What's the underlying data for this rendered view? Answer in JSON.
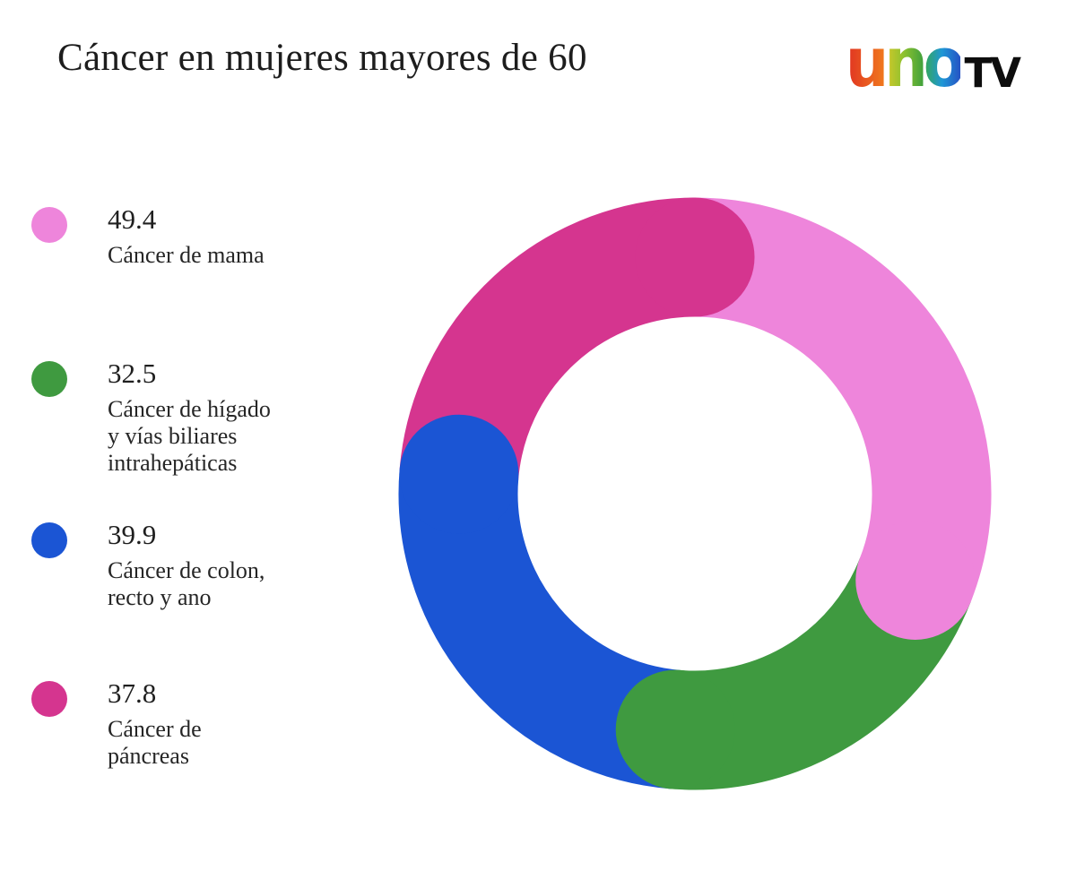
{
  "header": {
    "title": "Cáncer en mujeres mayores de 60",
    "logo": {
      "tv": "TV",
      "letters": [
        {
          "char": "u",
          "dir": "90deg",
          "stops": [
            "#E03122",
            "#F0791E"
          ]
        },
        {
          "char": "n",
          "dir": "90deg",
          "stops": [
            "#D8C929",
            "#8DC12F",
            "#3FA03C"
          ]
        },
        {
          "char": "o",
          "dir": "90deg",
          "stops": [
            "#36A851",
            "#1F97D6",
            "#2653C4"
          ]
        }
      ]
    }
  },
  "chart_data": {
    "type": "pie",
    "subtype": "donut",
    "title": "Cáncer en mujeres mayores de 60",
    "start_angle_deg": -90,
    "direction": "clockwise",
    "rounded_caps": true,
    "legend_position": "left",
    "series": [
      {
        "name": "Cáncer de mama",
        "value": 49.4,
        "color": "#EE85DB"
      },
      {
        "name": "Cáncer de hígado y vías biliares intrahepáticas",
        "value": 32.5,
        "color": "#3F9A40"
      },
      {
        "name": "Cáncer de colon, recto y ano",
        "value": 39.9,
        "color": "#1B55D4"
      },
      {
        "name": "Cáncer de páncreas",
        "value": 37.8,
        "color": "#D5358F"
      }
    ]
  },
  "legend": {
    "items": [
      {
        "value": "49.4",
        "color": "#EE85DB",
        "label_lines": [
          "Cáncer de mama"
        ]
      },
      {
        "value": "32.5",
        "color": "#3F9A40",
        "label_lines": [
          "Cáncer de hígado",
          "y vías biliares",
          "intrahepáticas"
        ]
      },
      {
        "value": "39.9",
        "color": "#1B55D4",
        "label_lines": [
          "Cáncer de colon,",
          "recto y ano"
        ]
      },
      {
        "value": "37.8",
        "color": "#D5358F",
        "label_lines": [
          "Cáncer de",
          "páncreas"
        ]
      }
    ]
  }
}
